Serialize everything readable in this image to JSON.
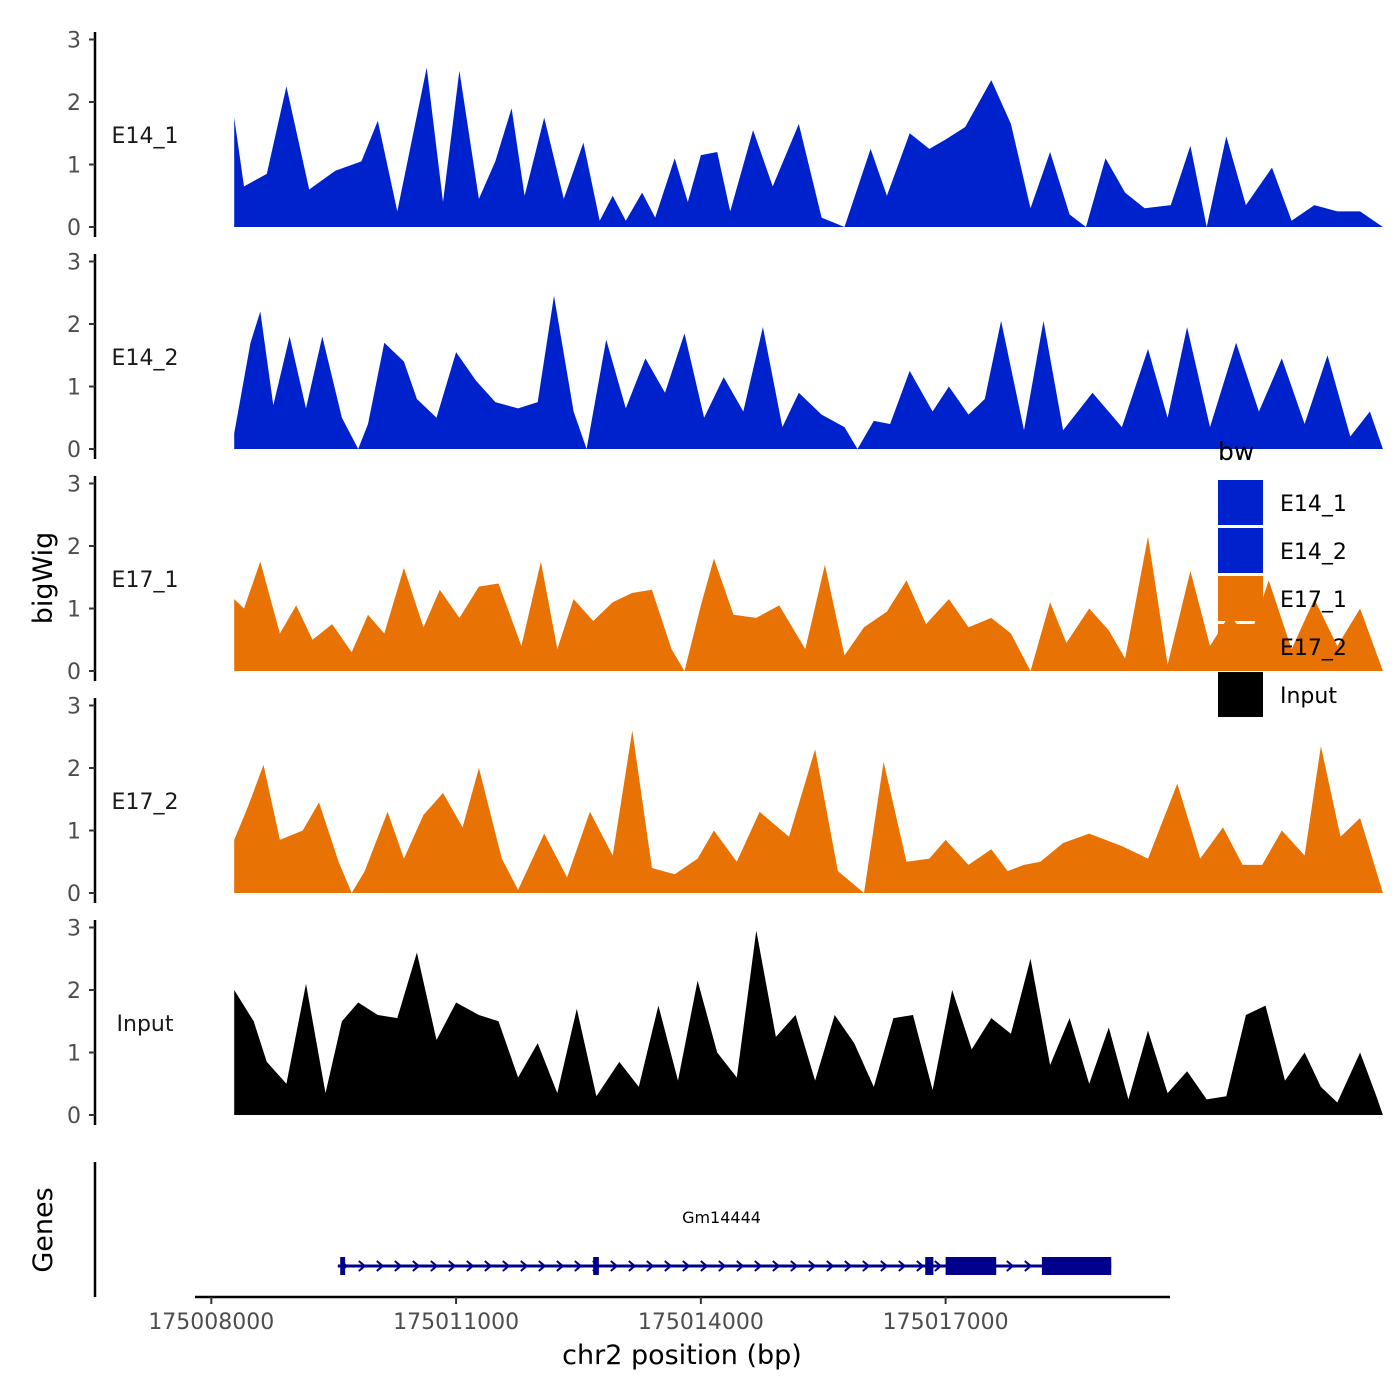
{
  "chart_data": {
    "type": "area",
    "ylabel": "bigWig",
    "xlabel": "chr2 position (bp)",
    "genes_label": "Genes",
    "xlim": [
      175007800,
      175019750
    ],
    "x_ticks": [
      175008000,
      175011000,
      175014000,
      175017000
    ],
    "x_tick_labels": [
      "175008000",
      "175011000",
      "175014000",
      "175017000"
    ],
    "ylim": [
      0,
      3
    ],
    "y_ticks": [
      0,
      1,
      2,
      3
    ],
    "y_tick_labels": [
      "0",
      "1",
      "2",
      "3"
    ],
    "legend": {
      "title": "bw",
      "position": "right",
      "entries": [
        {
          "label": "E14_1",
          "color": "#0022CC"
        },
        {
          "label": "E14_2",
          "color": "#0022CC"
        },
        {
          "label": "E17_1",
          "color": "#E87203"
        },
        {
          "label": "E17_2",
          "color": "#E87203"
        },
        {
          "label": "Input",
          "color": "#000000"
        }
      ]
    },
    "x_start": 175008280,
    "x_step": 40,
    "series": [
      {
        "name": "E14_1",
        "color": "#0022CC",
        "peaks": [
          [
            0,
            1.75
          ],
          [
            6,
            0.65
          ],
          [
            20,
            0.85
          ],
          [
            32,
            2.25
          ],
          [
            46,
            0.6
          ],
          [
            62,
            0.9
          ],
          [
            78,
            1.05
          ],
          [
            88,
            1.7
          ],
          [
            100,
            0.25
          ],
          [
            118,
            2.55
          ],
          [
            128,
            0.4
          ],
          [
            138,
            2.5
          ],
          [
            150,
            0.45
          ],
          [
            160,
            1.05
          ],
          [
            170,
            1.9
          ],
          [
            178,
            0.5
          ],
          [
            190,
            1.75
          ],
          [
            202,
            0.45
          ],
          [
            214,
            1.35
          ],
          [
            224,
            0.1
          ],
          [
            232,
            0.5
          ],
          [
            240,
            0.1
          ],
          [
            250,
            0.55
          ],
          [
            258,
            0.15
          ],
          [
            270,
            1.1
          ],
          [
            278,
            0.4
          ],
          [
            286,
            1.15
          ],
          [
            296,
            1.2
          ],
          [
            304,
            0.25
          ],
          [
            318,
            1.55
          ],
          [
            330,
            0.65
          ],
          [
            346,
            1.65
          ],
          [
            360,
            0.15
          ],
          [
            374,
            0.0
          ],
          [
            390,
            1.25
          ],
          [
            400,
            0.5
          ],
          [
            414,
            1.5
          ],
          [
            426,
            1.25
          ],
          [
            436,
            1.4
          ],
          [
            448,
            1.6
          ],
          [
            464,
            2.35
          ],
          [
            476,
            1.65
          ],
          [
            488,
            0.3
          ],
          [
            500,
            1.2
          ],
          [
            512,
            0.2
          ],
          [
            522,
            0.0
          ],
          [
            534,
            1.1
          ],
          [
            546,
            0.55
          ],
          [
            558,
            0.3
          ],
          [
            574,
            0.35
          ],
          [
            586,
            1.3
          ],
          [
            596,
            0.0
          ],
          [
            608,
            1.45
          ],
          [
            620,
            0.35
          ],
          [
            636,
            0.95
          ],
          [
            648,
            0.1
          ],
          [
            662,
            0.35
          ],
          [
            676,
            0.25
          ],
          [
            690,
            0.25
          ],
          [
            704,
            0.0
          ]
        ]
      },
      {
        "name": "E14_2",
        "color": "#0022CC",
        "peaks": [
          [
            0,
            0.25
          ],
          [
            10,
            1.7
          ],
          [
            16,
            2.2
          ],
          [
            24,
            0.7
          ],
          [
            34,
            1.8
          ],
          [
            44,
            0.65
          ],
          [
            54,
            1.8
          ],
          [
            66,
            0.5
          ],
          [
            76,
            0.0
          ],
          [
            82,
            0.4
          ],
          [
            92,
            1.7
          ],
          [
            104,
            1.4
          ],
          [
            112,
            0.8
          ],
          [
            124,
            0.5
          ],
          [
            136,
            1.55
          ],
          [
            148,
            1.1
          ],
          [
            160,
            0.75
          ],
          [
            174,
            0.65
          ],
          [
            186,
            0.75
          ],
          [
            196,
            2.45
          ],
          [
            208,
            0.6
          ],
          [
            216,
            0.0
          ],
          [
            228,
            1.75
          ],
          [
            240,
            0.65
          ],
          [
            252,
            1.45
          ],
          [
            264,
            0.9
          ],
          [
            276,
            1.85
          ],
          [
            288,
            0.5
          ],
          [
            300,
            1.15
          ],
          [
            312,
            0.6
          ],
          [
            324,
            1.95
          ],
          [
            336,
            0.35
          ],
          [
            346,
            0.9
          ],
          [
            360,
            0.55
          ],
          [
            374,
            0.35
          ],
          [
            382,
            0.0
          ],
          [
            392,
            0.45
          ],
          [
            402,
            0.4
          ],
          [
            414,
            1.25
          ],
          [
            428,
            0.6
          ],
          [
            438,
            1.0
          ],
          [
            450,
            0.55
          ],
          [
            460,
            0.8
          ],
          [
            470,
            2.05
          ],
          [
            484,
            0.3
          ],
          [
            496,
            2.05
          ],
          [
            508,
            0.3
          ],
          [
            526,
            0.9
          ],
          [
            544,
            0.35
          ],
          [
            560,
            1.6
          ],
          [
            572,
            0.5
          ],
          [
            584,
            1.95
          ],
          [
            598,
            0.35
          ],
          [
            614,
            1.7
          ],
          [
            628,
            0.6
          ],
          [
            642,
            1.45
          ],
          [
            656,
            0.4
          ],
          [
            670,
            1.5
          ],
          [
            684,
            0.2
          ],
          [
            696,
            0.6
          ],
          [
            704,
            0.0
          ]
        ]
      },
      {
        "name": "E17_1",
        "color": "#E87203",
        "peaks": [
          [
            0,
            1.15
          ],
          [
            6,
            1.0
          ],
          [
            16,
            1.75
          ],
          [
            28,
            0.6
          ],
          [
            38,
            1.05
          ],
          [
            48,
            0.5
          ],
          [
            60,
            0.75
          ],
          [
            72,
            0.3
          ],
          [
            82,
            0.9
          ],
          [
            92,
            0.6
          ],
          [
            104,
            1.65
          ],
          [
            116,
            0.7
          ],
          [
            126,
            1.3
          ],
          [
            138,
            0.85
          ],
          [
            150,
            1.35
          ],
          [
            162,
            1.4
          ],
          [
            176,
            0.4
          ],
          [
            188,
            1.75
          ],
          [
            198,
            0.35
          ],
          [
            208,
            1.15
          ],
          [
            220,
            0.8
          ],
          [
            232,
            1.1
          ],
          [
            244,
            1.25
          ],
          [
            256,
            1.3
          ],
          [
            268,
            0.35
          ],
          [
            276,
            0.0
          ],
          [
            286,
            1.05
          ],
          [
            294,
            1.8
          ],
          [
            306,
            0.9
          ],
          [
            320,
            0.85
          ],
          [
            334,
            1.05
          ],
          [
            350,
            0.35
          ],
          [
            362,
            1.7
          ],
          [
            374,
            0.25
          ],
          [
            386,
            0.7
          ],
          [
            400,
            0.95
          ],
          [
            412,
            1.45
          ],
          [
            424,
            0.75
          ],
          [
            438,
            1.15
          ],
          [
            450,
            0.7
          ],
          [
            464,
            0.85
          ],
          [
            476,
            0.6
          ],
          [
            488,
            0.0
          ],
          [
            500,
            1.1
          ],
          [
            510,
            0.45
          ],
          [
            524,
            1.0
          ],
          [
            536,
            0.65
          ],
          [
            546,
            0.2
          ],
          [
            560,
            2.15
          ],
          [
            572,
            0.1
          ],
          [
            586,
            1.6
          ],
          [
            598,
            0.4
          ],
          [
            610,
            0.9
          ],
          [
            622,
            0.5
          ],
          [
            634,
            1.45
          ],
          [
            648,
            0.35
          ],
          [
            662,
            1.15
          ],
          [
            676,
            0.4
          ],
          [
            690,
            1.0
          ],
          [
            704,
            0.0
          ]
        ]
      },
      {
        "name": "E17_2",
        "color": "#E87203",
        "peaks": [
          [
            0,
            0.85
          ],
          [
            8,
            1.35
          ],
          [
            18,
            2.05
          ],
          [
            28,
            0.85
          ],
          [
            42,
            1.0
          ],
          [
            52,
            1.45
          ],
          [
            64,
            0.5
          ],
          [
            72,
            0.0
          ],
          [
            80,
            0.35
          ],
          [
            94,
            1.3
          ],
          [
            104,
            0.55
          ],
          [
            116,
            1.25
          ],
          [
            128,
            1.6
          ],
          [
            140,
            1.05
          ],
          [
            150,
            2.0
          ],
          [
            164,
            0.55
          ],
          [
            174,
            0.05
          ],
          [
            190,
            0.95
          ],
          [
            204,
            0.25
          ],
          [
            218,
            1.3
          ],
          [
            232,
            0.6
          ],
          [
            244,
            2.6
          ],
          [
            256,
            0.4
          ],
          [
            270,
            0.3
          ],
          [
            284,
            0.55
          ],
          [
            294,
            1.0
          ],
          [
            308,
            0.5
          ],
          [
            322,
            1.3
          ],
          [
            340,
            0.9
          ],
          [
            356,
            2.3
          ],
          [
            370,
            0.35
          ],
          [
            386,
            0.0
          ],
          [
            398,
            2.1
          ],
          [
            412,
            0.5
          ],
          [
            426,
            0.55
          ],
          [
            436,
            0.85
          ],
          [
            450,
            0.45
          ],
          [
            464,
            0.7
          ],
          [
            474,
            0.35
          ],
          [
            484,
            0.45
          ],
          [
            494,
            0.5
          ],
          [
            508,
            0.8
          ],
          [
            524,
            0.95
          ],
          [
            544,
            0.75
          ],
          [
            560,
            0.55
          ],
          [
            578,
            1.75
          ],
          [
            592,
            0.55
          ],
          [
            606,
            1.05
          ],
          [
            618,
            0.45
          ],
          [
            630,
            0.45
          ],
          [
            642,
            1.0
          ],
          [
            656,
            0.6
          ],
          [
            666,
            2.35
          ],
          [
            678,
            0.9
          ],
          [
            690,
            1.2
          ],
          [
            704,
            0.0
          ]
        ]
      },
      {
        "name": "Input",
        "color": "#000000",
        "peaks": [
          [
            0,
            2.0
          ],
          [
            12,
            1.5
          ],
          [
            20,
            0.85
          ],
          [
            32,
            0.5
          ],
          [
            44,
            2.1
          ],
          [
            56,
            0.35
          ],
          [
            66,
            1.5
          ],
          [
            76,
            1.8
          ],
          [
            88,
            1.6
          ],
          [
            100,
            1.55
          ],
          [
            112,
            2.6
          ],
          [
            124,
            1.2
          ],
          [
            136,
            1.8
          ],
          [
            150,
            1.6
          ],
          [
            162,
            1.5
          ],
          [
            174,
            0.6
          ],
          [
            186,
            1.15
          ],
          [
            198,
            0.35
          ],
          [
            210,
            1.7
          ],
          [
            222,
            0.3
          ],
          [
            236,
            0.85
          ],
          [
            248,
            0.45
          ],
          [
            260,
            1.75
          ],
          [
            272,
            0.55
          ],
          [
            284,
            2.15
          ],
          [
            296,
            1.0
          ],
          [
            308,
            0.6
          ],
          [
            320,
            2.95
          ],
          [
            332,
            1.25
          ],
          [
            344,
            1.6
          ],
          [
            356,
            0.55
          ],
          [
            368,
            1.6
          ],
          [
            380,
            1.15
          ],
          [
            392,
            0.45
          ],
          [
            404,
            1.55
          ],
          [
            416,
            1.6
          ],
          [
            428,
            0.4
          ],
          [
            440,
            2.0
          ],
          [
            452,
            1.05
          ],
          [
            464,
            1.55
          ],
          [
            476,
            1.3
          ],
          [
            488,
            2.5
          ],
          [
            500,
            0.8
          ],
          [
            512,
            1.55
          ],
          [
            524,
            0.5
          ],
          [
            536,
            1.4
          ],
          [
            548,
            0.25
          ],
          [
            560,
            1.35
          ],
          [
            572,
            0.35
          ],
          [
            584,
            0.7
          ],
          [
            596,
            0.25
          ],
          [
            608,
            0.3
          ],
          [
            620,
            1.6
          ],
          [
            632,
            1.75
          ],
          [
            644,
            0.55
          ],
          [
            656,
            1.0
          ],
          [
            666,
            0.45
          ],
          [
            676,
            0.2
          ],
          [
            690,
            1.0
          ],
          [
            700,
            0.3
          ],
          [
            704,
            0.0
          ]
        ]
      }
    ],
    "gene": {
      "name": "Gm14444",
      "strand": "+",
      "color": "#00008B",
      "start": 175009550,
      "end": 175019030,
      "exons": [
        [
          175009580,
          175009640
        ],
        [
          175012680,
          175012750
        ],
        [
          175016750,
          175016850
        ],
        [
          175017000,
          175017620
        ],
        [
          175018180,
          175019030
        ]
      ]
    }
  }
}
